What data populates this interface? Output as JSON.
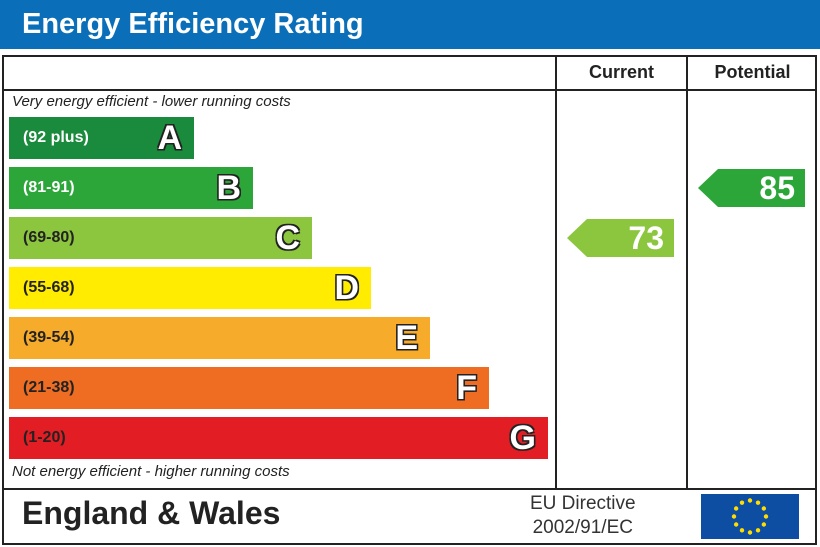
{
  "title": "Energy Efficiency Rating",
  "columns": {
    "current": "Current",
    "potential": "Potential"
  },
  "notes": {
    "top": "Very energy efficient - lower running costs",
    "bottom": "Not energy efficient - higher running costs"
  },
  "footer": {
    "region": "England & Wales",
    "directive_line1": "EU Directive",
    "directive_line2": "2002/91/EC"
  },
  "chart_data": {
    "type": "bar",
    "title": "Energy Efficiency Rating",
    "categories": [
      "A",
      "B",
      "C",
      "D",
      "E",
      "F",
      "G"
    ],
    "bands": [
      {
        "letter": "A",
        "range": "(92 plus)",
        "color": "#1a8a3c",
        "text_color": "#ffffff"
      },
      {
        "letter": "B",
        "range": "(81-91)",
        "color": "#2ca639",
        "text_color": "#ffffff"
      },
      {
        "letter": "C",
        "range": "(69-80)",
        "color": "#8cc63f",
        "text_color": "#222222"
      },
      {
        "letter": "D",
        "range": "(55-68)",
        "color": "#ffec00",
        "text_color": "#222222"
      },
      {
        "letter": "E",
        "range": "(39-54)",
        "color": "#f7ab2b",
        "text_color": "#222222"
      },
      {
        "letter": "F",
        "range": "(21-38)",
        "color": "#ee6d23",
        "text_color": "#222222"
      },
      {
        "letter": "G",
        "range": "(1-20)",
        "color": "#e31d24",
        "text_color": "#222222"
      }
    ],
    "current": {
      "value": 73,
      "band": "C",
      "color": "#8cc63f"
    },
    "potential": {
      "value": 85,
      "band": "B",
      "color": "#2ca639"
    }
  }
}
